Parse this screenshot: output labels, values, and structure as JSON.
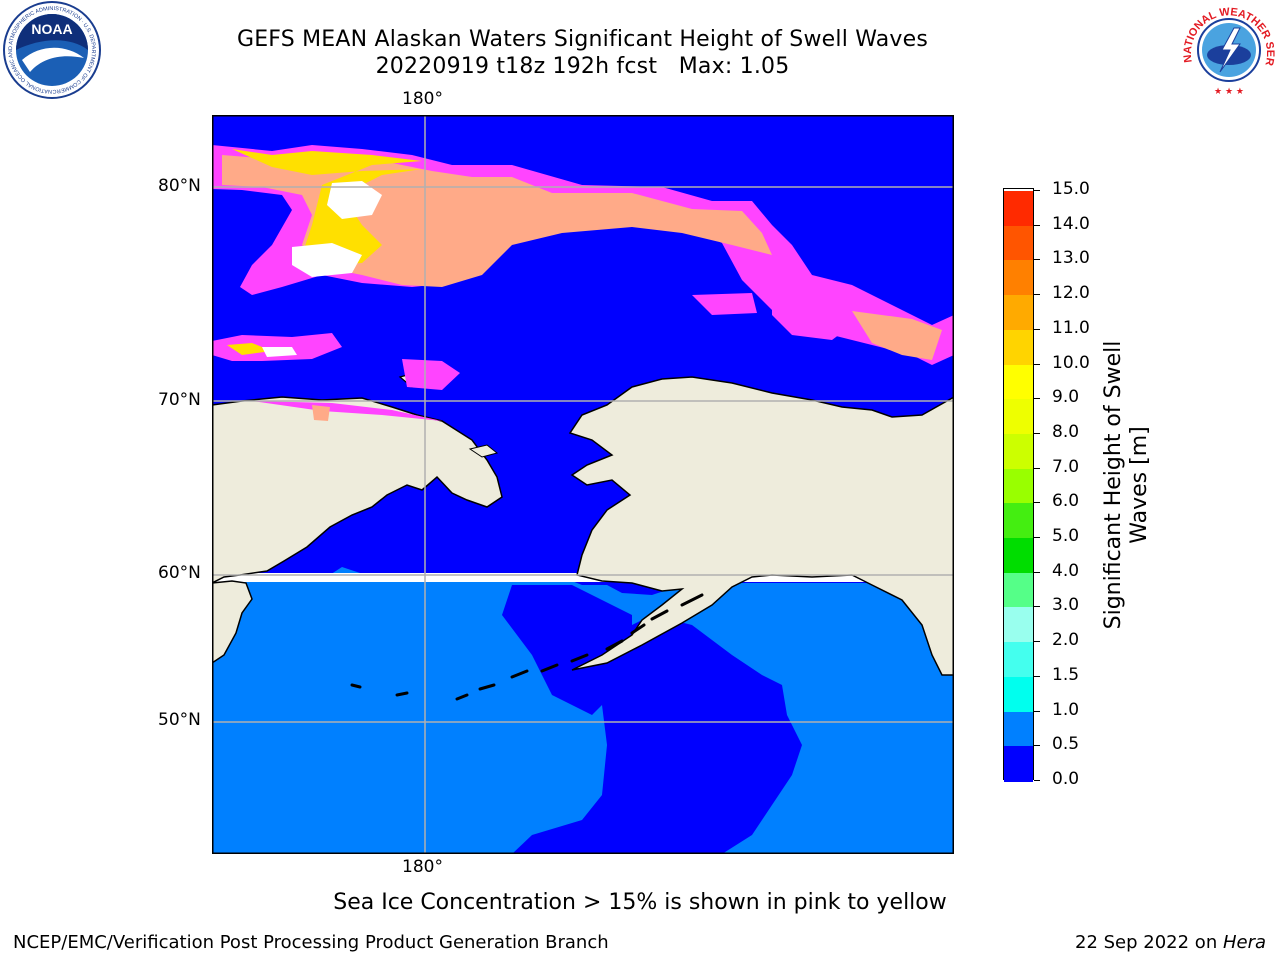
{
  "header": {
    "title_line1": "GEFS MEAN Alaskan Waters Significant Height of Swell Waves",
    "title_line2": "20220919 t18z 192h fcst   Max: 1.05"
  },
  "map": {
    "lon_label_top": "180°",
    "lon_label_bottom": "180°",
    "lat_labels": [
      "80°N",
      "70°N",
      "60°N",
      "50°N"
    ],
    "colors": {
      "land": "#eeecdc",
      "swell_0_05": "#0000ff",
      "swell_05_10": "#0080ff",
      "swell_10_15": "#00e5ff",
      "ice_low": "#ff44ff",
      "ice_mid": "#ffaa66",
      "ice_high": "#ffee00",
      "grid": "#b0b0b0"
    }
  },
  "colorbar": {
    "title": "Significant Height of Swell Waves [m]",
    "ticks": [
      "15.0",
      "14.0",
      "13.0",
      "12.0",
      "11.0",
      "10.0",
      "9.0",
      "8.0",
      "7.0",
      "6.0",
      "5.0",
      "4.0",
      "3.0",
      "2.0",
      "1.5",
      "1.0",
      "0.5",
      "0.0"
    ],
    "colors": [
      "#ff0000",
      "#ff2a00",
      "#ff5500",
      "#ff8000",
      "#ffaa00",
      "#ffd400",
      "#ffff00",
      "#eeff00",
      "#ccff00",
      "#99ff00",
      "#44ee11",
      "#00dd00",
      "#55ff88",
      "#99ffee",
      "#44ffee",
      "#00ffee",
      "#0080ff",
      "#0000ff"
    ]
  },
  "caption": "Sea Ice Concentration > 15% is shown in pink to yellow",
  "footer": {
    "left": "NCEP/EMC/Verification Post Processing Product Generation Branch",
    "right_date": "22 Sep 2022 on ",
    "right_host": "Hera"
  },
  "logos": {
    "noaa_text": "NOAA",
    "noaa_ring_text": "NATIONAL OCEANIC AND ATMOSPHERIC ADMINISTRATION · U.S. DEPARTMENT OF COMMERCE",
    "nws_ring_text": "NATIONAL WEATHER SERVICE"
  }
}
